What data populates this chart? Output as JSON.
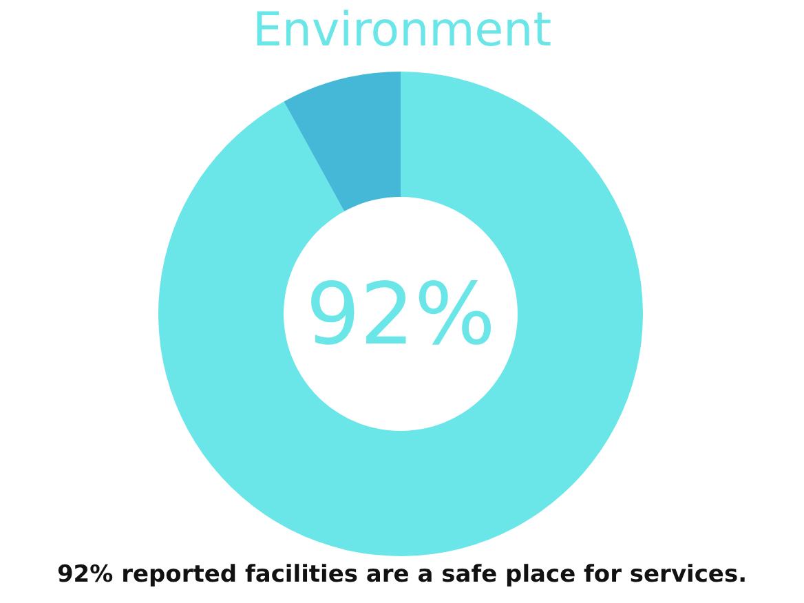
{
  "chart_data": {
    "type": "donut",
    "title": "Environment",
    "categories": [
      null,
      null
    ],
    "values": [
      92,
      8
    ],
    "colors": [
      "#6ae6e8",
      "#45b8d8"
    ],
    "value_labels": [
      "92%",
      null
    ],
    "annotations": [
      "92% reported facilities are a safe place for services."
    ]
  }
}
